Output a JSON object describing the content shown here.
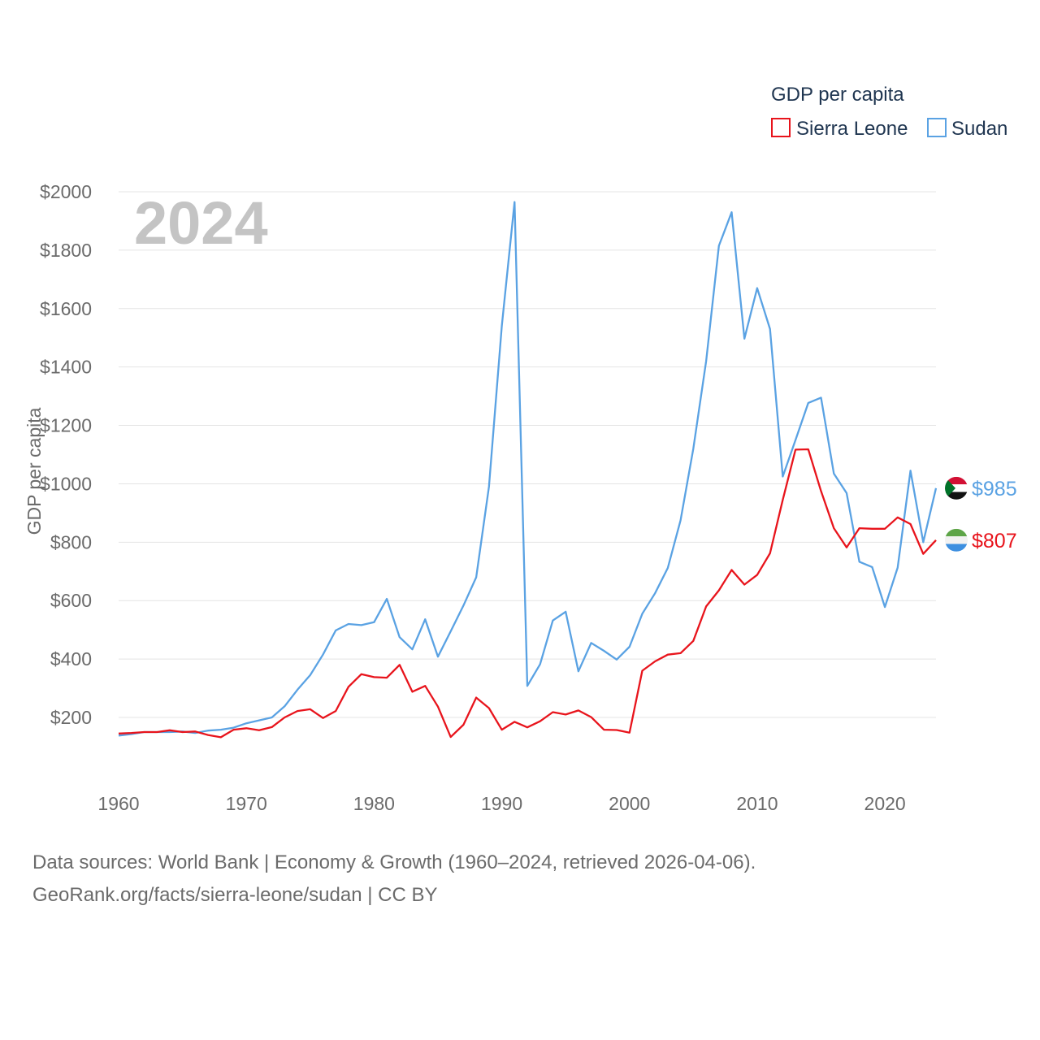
{
  "chart_data": {
    "type": "line",
    "title": "",
    "year_stamp": "2024",
    "xlabel": "",
    "ylabel": "GDP per capita",
    "xlim": [
      1960,
      2024
    ],
    "ylim": [
      100,
      2000
    ],
    "xticks": [
      1960,
      1970,
      1980,
      1990,
      2000,
      2010,
      2020
    ],
    "yticks": [
      200,
      400,
      600,
      800,
      1000,
      1200,
      1400,
      1600,
      1800,
      2000
    ],
    "ytick_labels": [
      "$200",
      "$400",
      "$600",
      "$800",
      "$1000",
      "$1200",
      "$1400",
      "$1600",
      "$1800",
      "$2000"
    ],
    "grid": true,
    "legend": {
      "title": "GDP per capita",
      "placement": "top-right",
      "entries": [
        "Sierra Leone",
        "Sudan"
      ]
    },
    "x": [
      1960,
      1961,
      1962,
      1963,
      1964,
      1965,
      1966,
      1967,
      1968,
      1969,
      1970,
      1971,
      1972,
      1973,
      1974,
      1975,
      1976,
      1977,
      1978,
      1979,
      1980,
      1981,
      1982,
      1983,
      1984,
      1985,
      1986,
      1987,
      1988,
      1989,
      1990,
      1991,
      1992,
      1993,
      1994,
      1995,
      1996,
      1997,
      1998,
      1999,
      2000,
      2001,
      2002,
      2003,
      2004,
      2005,
      2006,
      2007,
      2008,
      2009,
      2010,
      2011,
      2012,
      2013,
      2014,
      2015,
      2016,
      2017,
      2018,
      2019,
      2020,
      2021,
      2022,
      2023,
      2024
    ],
    "series": [
      {
        "name": "Sierra Leone",
        "color": "#e8141c",
        "end_label": "$807",
        "flag": "sierra-leone-flag-icon",
        "values": [
          145,
          147,
          150,
          150,
          156,
          150,
          152,
          140,
          132,
          158,
          163,
          156,
          167,
          200,
          222,
          228,
          198,
          222,
          305,
          348,
          338,
          336,
          380,
          288,
          308,
          237,
          133,
          175,
          268,
          232,
          158,
          185,
          166,
          187,
          218,
          210,
          224,
          201,
          158,
          157,
          148,
          360,
          392,
          415,
          420,
          462,
          580,
          635,
          705,
          655,
          688,
          762,
          945,
          1117,
          1118,
          975,
          848,
          782,
          848,
          846,
          846,
          885,
          862,
          760,
          807
        ]
      },
      {
        "name": "Sudan",
        "color": "#5aa2e3",
        "end_label": "$985",
        "flag": "sudan-flag-icon",
        "values": [
          138,
          143,
          150,
          150,
          150,
          152,
          147,
          155,
          158,
          165,
          180,
          190,
          200,
          238,
          295,
          345,
          415,
          498,
          520,
          516,
          526,
          606,
          475,
          433,
          536,
          408,
          495,
          583,
          680,
          990,
          1540,
          1965,
          308,
          382,
          532,
          562,
          358,
          455,
          428,
          398,
          442,
          555,
          625,
          712,
          875,
          1120,
          1420,
          1815,
          1930,
          1497,
          1670,
          1530,
          1025,
          1150,
          1277,
          1295,
          1035,
          968,
          733,
          715,
          578,
          713,
          1045,
          800,
          985
        ]
      }
    ]
  },
  "footer": {
    "line1": "Data sources: World Bank | Economy & Growth (1960–2024, retrieved 2026-04-06).",
    "line2": "GeoRank.org/facts/sierra-leone/sudan | CC BY"
  }
}
